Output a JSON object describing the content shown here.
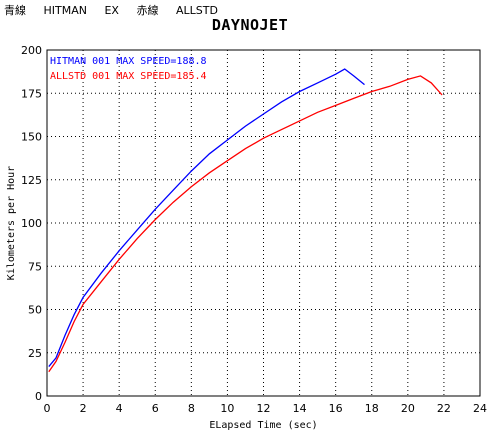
{
  "header": {
    "blue_label": "青線",
    "blue_name": "HITMAN",
    "blue_suffix": "EX",
    "red_label": "赤線",
    "red_name": "ALLSTD"
  },
  "chart_data": {
    "type": "line",
    "title": "DAYNOJET",
    "xlabel": "ELapsed Time (sec)",
    "ylabel": "Kilometers per Hour",
    "xlim": [
      0,
      24
    ],
    "ylim": [
      0,
      200
    ],
    "xticks": [
      0,
      2,
      4,
      6,
      8,
      10,
      12,
      14,
      16,
      18,
      20,
      22,
      24
    ],
    "yticks": [
      0,
      25,
      50,
      75,
      100,
      125,
      150,
      175,
      200
    ],
    "grid": true,
    "legend_position": "top-left",
    "series": [
      {
        "name": "HITMAN  001  MAX SPEED=188.8",
        "color": "#0000ff",
        "points": [
          [
            0.1,
            17
          ],
          [
            0.5,
            22
          ],
          [
            1,
            35
          ],
          [
            1.5,
            47
          ],
          [
            2,
            57
          ],
          [
            3,
            71
          ],
          [
            4,
            84
          ],
          [
            5,
            96
          ],
          [
            6,
            108
          ],
          [
            7,
            119
          ],
          [
            8,
            130
          ],
          [
            9,
            140
          ],
          [
            10,
            148
          ],
          [
            11,
            156
          ],
          [
            12,
            163
          ],
          [
            13,
            170
          ],
          [
            14,
            176
          ],
          [
            15,
            181
          ],
          [
            16,
            186
          ],
          [
            16.5,
            189
          ],
          [
            17,
            185
          ],
          [
            17.6,
            180
          ]
        ]
      },
      {
        "name": "ALLSTD  001  MAX SPEED=185.4",
        "color": "#ff0000",
        "points": [
          [
            0.1,
            14
          ],
          [
            0.5,
            20
          ],
          [
            1,
            31
          ],
          [
            1.5,
            43
          ],
          [
            2,
            53
          ],
          [
            3,
            66
          ],
          [
            4,
            79
          ],
          [
            5,
            91
          ],
          [
            6,
            102
          ],
          [
            7,
            112
          ],
          [
            8,
            121
          ],
          [
            9,
            129
          ],
          [
            10,
            136
          ],
          [
            11,
            143
          ],
          [
            12,
            149
          ],
          [
            13,
            154
          ],
          [
            14,
            159
          ],
          [
            15,
            164
          ],
          [
            16,
            168
          ],
          [
            17,
            172
          ],
          [
            18,
            176
          ],
          [
            19,
            179
          ],
          [
            20,
            183
          ],
          [
            20.7,
            185
          ],
          [
            21.3,
            181
          ],
          [
            21.9,
            174
          ]
        ]
      }
    ]
  }
}
